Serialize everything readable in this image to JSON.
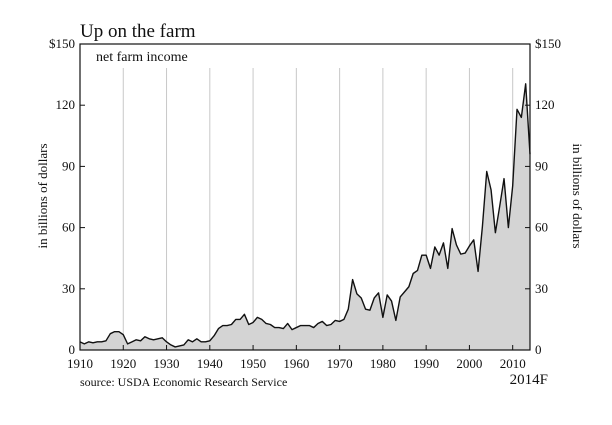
{
  "chart_data": {
    "type": "area",
    "title": "Up on the farm",
    "subtitle": "net farm income",
    "xlabel": "",
    "ylabel": "in billions of dollars",
    "ylabel_right": "in billions of dollars",
    "xlim": [
      1910,
      2014
    ],
    "ylim": [
      0,
      150
    ],
    "y_ticks": [
      0,
      30,
      60,
      90,
      120,
      150
    ],
    "y_tick_labels": [
      "0",
      "30",
      "60",
      "90",
      "120",
      "$150"
    ],
    "x_ticks": [
      1910,
      1920,
      1930,
      1940,
      1950,
      1960,
      1970,
      1980,
      1990,
      2000,
      2010
    ],
    "x_tick_labels": [
      "1910",
      "1920",
      "1930",
      "1940",
      "1950",
      "1960",
      "1970",
      "1980",
      "1990",
      "2000",
      "2010"
    ],
    "forecast_label": "2014F",
    "grid": "vertical",
    "source": "source: USDA Economic Research Service",
    "colors": {
      "fill": "#d4d4d4",
      "line": "#111111",
      "grid": "#c8c8c8"
    },
    "series": [
      {
        "x": [
          1910,
          1911,
          1912,
          1913,
          1914,
          1915,
          1916,
          1917,
          1918,
          1919,
          1920,
          1921,
          1922,
          1923,
          1924,
          1925,
          1926,
          1927,
          1928,
          1929,
          1930,
          1931,
          1932,
          1933,
          1934,
          1935,
          1936,
          1937,
          1938,
          1939,
          1940,
          1941,
          1942,
          1943,
          1944,
          1945,
          1946,
          1947,
          1948,
          1949,
          1950,
          1951,
          1952,
          1953,
          1954,
          1955,
          1956,
          1957,
          1958,
          1959,
          1960,
          1961,
          1962,
          1963,
          1964,
          1965,
          1966,
          1967,
          1968,
          1969,
          1970,
          1971,
          1972,
          1973,
          1974,
          1975,
          1976,
          1977,
          1978,
          1979,
          1980,
          1981,
          1982,
          1983,
          1984,
          1985,
          1986,
          1987,
          1988,
          1989,
          1990,
          1991,
          1992,
          1993,
          1994,
          1995,
          1996,
          1997,
          1998,
          1999,
          2000,
          2001,
          2002,
          2003,
          2004,
          2005,
          2006,
          2007,
          2008,
          2009,
          2010,
          2011,
          2012,
          2013,
          2014
        ],
        "values": [
          4,
          3,
          4,
          3.5,
          4,
          4,
          4.5,
          8,
          9,
          9,
          7.5,
          3,
          4,
          5,
          4.5,
          6.5,
          5.5,
          5,
          5.5,
          6,
          4,
          2.5,
          1.5,
          2,
          2.5,
          5,
          4,
          5.5,
          4,
          4,
          4.5,
          7,
          10.5,
          12,
          12,
          12.5,
          15,
          15,
          17.5,
          12.5,
          13.5,
          16,
          15,
          13,
          12.5,
          11,
          11,
          10.5,
          13,
          10,
          11,
          12,
          12,
          12,
          11,
          13,
          14,
          12,
          12.5,
          14.5,
          14,
          15,
          20,
          34.5,
          27.5,
          25.5,
          20,
          19.5,
          25.5,
          28,
          16,
          27,
          24,
          14.5,
          26,
          28.5,
          31,
          37.5,
          39,
          46.5,
          46.5,
          40,
          50.5,
          46.5,
          52.5,
          40,
          59.5,
          51.5,
          47,
          47.5,
          51,
          54,
          38.5,
          60.5,
          87.5,
          78.5,
          57.5,
          70.5,
          84,
          60,
          80.5,
          118,
          114,
          130.5,
          96
        ]
      }
    ]
  }
}
